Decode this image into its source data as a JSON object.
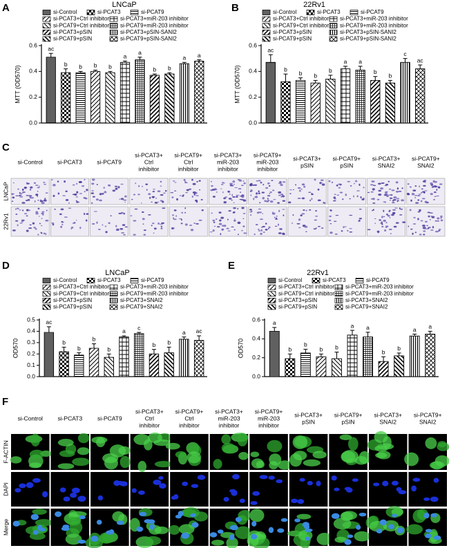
{
  "panel_labels": [
    "A",
    "B",
    "C",
    "D",
    "E",
    "F"
  ],
  "chart_data": [
    {
      "type": "bar",
      "title": "LNCaP",
      "y_label": "MTT (OD570)",
      "categories": [
        "si-Control",
        "si-PCAT3",
        "si-PCAT9",
        "si-PCAT3+Ctrl inhibitor",
        "si-PCAT9+Ctrl inhibitor",
        "si-PCAT3+miR-203 inhibitor",
        "si-PCAT9+miR-203 inhibitor",
        "si-PCAT3+pSIN",
        "si-PCAT9+pSIN",
        "si-PCAT3+pSIN-SANI2",
        "si-PCAT9+pSIN-SANI2"
      ],
      "values": [
        0.51,
        0.39,
        0.39,
        0.4,
        0.39,
        0.47,
        0.49,
        0.37,
        0.38,
        0.46,
        0.48
      ],
      "errors": [
        0.03,
        0.03,
        0.01,
        0.01,
        0.01,
        0.01,
        0.02,
        0.01,
        0.01,
        0.01,
        0.01
      ],
      "annotations": [
        "ac",
        "b",
        "b",
        "b",
        "b",
        "a",
        "a",
        "b",
        "b",
        "a",
        "a"
      ],
      "color": "#000000",
      "ylim": [
        0,
        0.6
      ],
      "yticks": [
        {
          "value": 0,
          "label": "0.0"
        },
        0.2,
        0.4,
        0.6
      ]
    },
    {
      "type": "bar",
      "title": "22Rv1",
      "y_label": "MTT (OD570)",
      "categories": [
        "si-Control",
        "si-PCAT3",
        "si-PCAT9",
        "si-PCAT3+Ctrl inhibitor",
        "si-PCAT9+Ctrl inhibitor",
        "si-PCAT3+miR-203 inhibitor",
        "si-PCAT9+miR-203 inhibitor",
        "si-PCAT3+pSIN",
        "si-PCAT9+pSIN",
        "si-PCAT3+pSIN-SANI2",
        "si-PCAT9+pSIN-SANI2"
      ],
      "values": [
        0.47,
        0.32,
        0.33,
        0.31,
        0.34,
        0.42,
        0.41,
        0.33,
        0.31,
        0.47,
        0.42
      ],
      "errors": [
        0.06,
        0.06,
        0.02,
        0.02,
        0.03,
        0.02,
        0.03,
        0.03,
        0.02,
        0.03,
        0.03
      ],
      "annotations": [
        "ac",
        "b",
        "b",
        "b",
        "b",
        "a",
        "a",
        "b",
        "b",
        "c",
        "ac"
      ],
      "color": "#000000",
      "ylim": [
        0,
        0.6
      ],
      "yticks": [
        {
          "value": 0,
          "label": "0.0"
        },
        0.2,
        0.4,
        0.6
      ]
    },
    {
      "type": "bar",
      "title": "LNCaP",
      "y_label": "OD570",
      "categories": [
        "si-Control",
        "si-PCAT3",
        "si-PCAT9",
        "si-PCAT3+Ctrl inhibitor",
        "si-PCAT9+Ctrl inhibitor",
        "si-PCAT3+miR-203 inhibitor",
        "si-PCAT9+miR-203 inhibitor",
        "si-PCAT3+pSIN",
        "si-PCAT9+pSIN",
        "si-PCAT3+SNAI2",
        "si-PCAT9+SNAI2"
      ],
      "values": [
        0.39,
        0.22,
        0.19,
        0.25,
        0.17,
        0.35,
        0.38,
        0.2,
        0.21,
        0.33,
        0.32
      ],
      "errors": [
        0.05,
        0.04,
        0.02,
        0.04,
        0.03,
        0.01,
        0.01,
        0.04,
        0.05,
        0.02,
        0.04
      ],
      "annotations": [
        "ac",
        "b",
        "b",
        "b",
        "b",
        "a",
        "c",
        "b",
        "b",
        "a",
        "ac"
      ],
      "color": "#000000",
      "ylim": [
        0,
        0.5
      ],
      "yticks": [
        {
          "value": 0,
          "label": "0.0"
        },
        0.1,
        0.2,
        0.3,
        0.4,
        0.5
      ]
    },
    {
      "type": "bar",
      "title": "22Rv1",
      "y_label": "OD570",
      "categories": [
        "si-Control",
        "si-PCAT3",
        "si-PCAT9",
        "si-PCAT3+Ctrl inhibitor",
        "si-PCAT9+Ctrl inhibitor",
        "si-PCAT3+miR-203 inhibitor",
        "si-PCAT9+miR-203 inhibitor",
        "si-PCAT3+pSIN",
        "si-PCAT9+pSIN",
        "si-PCAT3+SNAI2",
        "si-PCAT9+SNAI2"
      ],
      "values": [
        0.48,
        0.19,
        0.25,
        0.21,
        0.19,
        0.44,
        0.42,
        0.16,
        0.22,
        0.43,
        0.45
      ],
      "errors": [
        0.04,
        0.05,
        0.04,
        0.03,
        0.07,
        0.05,
        0.05,
        0.05,
        0.03,
        0.02,
        0.03
      ],
      "annotations": [
        "a",
        "b",
        "b",
        "b",
        "b",
        "a",
        "a",
        "b",
        "b",
        "a",
        "a"
      ],
      "color": "#000000",
      "ylim": [
        0,
        0.6
      ],
      "yticks": [
        {
          "value": 0,
          "label": "0.0"
        },
        0.2,
        0.4,
        0.6
      ]
    }
  ],
  "invasion_images": {
    "columns": [
      [
        "si-Control"
      ],
      [
        "si-PCAT3"
      ],
      [
        "si-PCAT9"
      ],
      [
        "si-PCAT3+",
        "Ctrl",
        "inhibitor"
      ],
      [
        "si-PCAT9+",
        "Ctrl",
        "inhibitor"
      ],
      [
        "si-PCAT3+",
        "miR-203",
        "inhibitor"
      ],
      [
        "si-PCAT9+",
        "miR-203",
        "inhibitor"
      ],
      [
        "si-PCAT3+",
        "pSIN"
      ],
      [
        "si-PCAT9+",
        "pSIN"
      ],
      [
        "si-PCAT3+",
        "SNAI2"
      ],
      [
        "si-PCAT9+",
        "SNAI2"
      ]
    ],
    "rows": [
      "LNCaP",
      "22Rv1"
    ]
  },
  "if_images": {
    "columns": [
      [
        "si-Control"
      ],
      [
        "si-PCAT3"
      ],
      [
        "si-PCAT9"
      ],
      [
        "si-PCAT3+",
        "Ctrl",
        "inhibitor"
      ],
      [
        "si-PCAT9+",
        "Ctrl",
        "inhibitor"
      ],
      [
        "si-PCAT3+",
        "miR-203",
        "inhibitor"
      ],
      [
        "si-PCAT9+",
        "miR-203",
        "inhibitor"
      ],
      [
        "si-PCAT3+",
        "pSIN"
      ],
      [
        "si-PCAT9+",
        "pSIN"
      ],
      [
        "si-PCAT3+",
        "SNAI2"
      ],
      [
        "si-PCAT9+",
        "SNAI2"
      ]
    ],
    "rows": [
      "F-ACTIN",
      "DAPI",
      "Merge"
    ]
  }
}
